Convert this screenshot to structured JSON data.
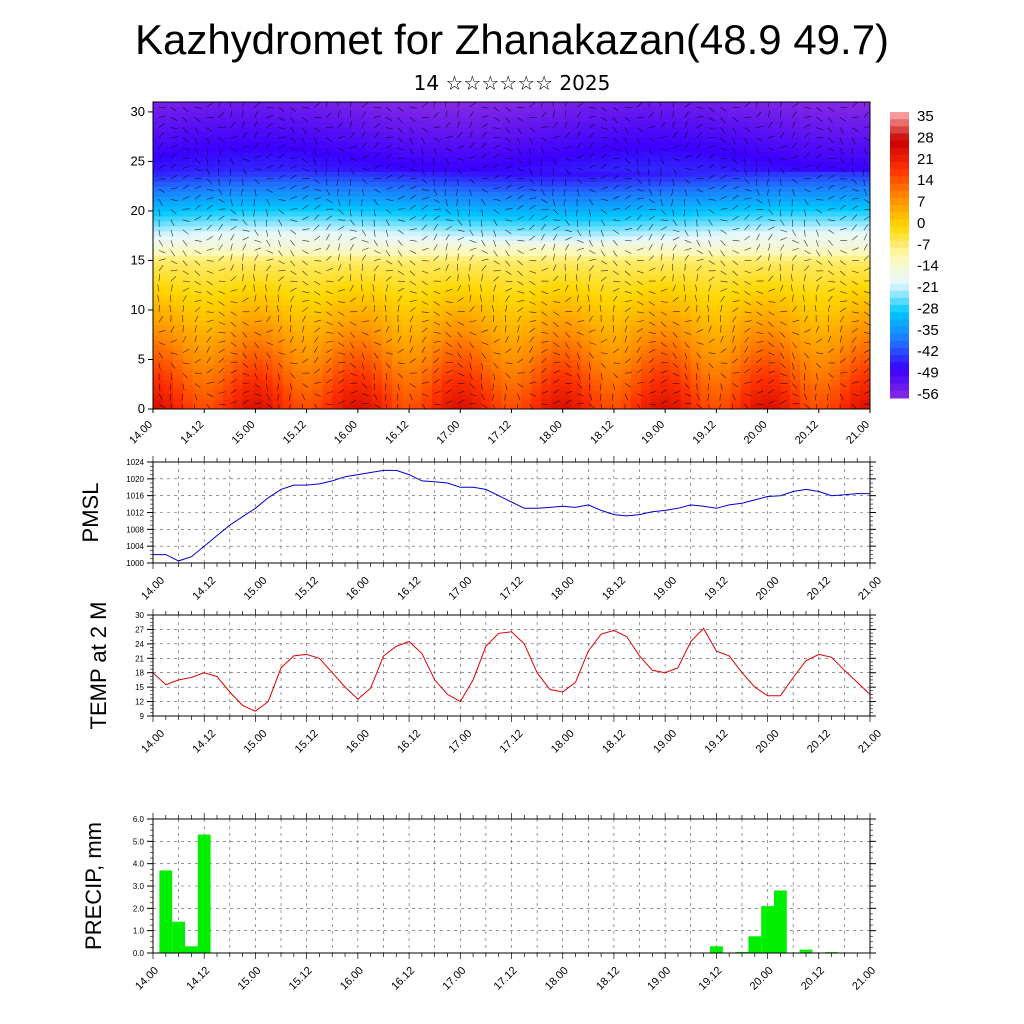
{
  "header": {
    "title": "Kazhydromet for Zhanakazan(48.9 49.7)",
    "subtitle": "14 ☆☆☆☆☆☆ 2025"
  },
  "time_ticks": [
    "14.00",
    "14.12",
    "15.00",
    "15.12",
    "16.00",
    "16.12",
    "17.00",
    "17.12",
    "18.00",
    "18.12",
    "19.00",
    "19.12",
    "20.00",
    "20.12",
    "21.00"
  ],
  "colors": {
    "pmsl_line": "#0000cc",
    "temp_line": "#dd0000",
    "precip_bar": "#00ee00",
    "colormap": [
      "#8a2be2",
      "#3a00ff",
      "#1e78ff",
      "#00c8ff",
      "#e6f8ff",
      "#fff8b0",
      "#ffd700",
      "#ff8c00",
      "#ff3000",
      "#c80000",
      "#ffb0b0"
    ]
  },
  "chart_data": [
    {
      "type": "heatmap",
      "title": "Kazhydromet for Zhanakazan(48.9 49.7)",
      "subtitle": "14 ☆☆☆☆☆☆ 2025",
      "ylim": [
        0,
        31
      ],
      "yticks": [
        0,
        5,
        10,
        15,
        20,
        25,
        30
      ],
      "xticks": [
        "14.00",
        "14.12",
        "15.00",
        "15.12",
        "16.00",
        "16.12",
        "17.00",
        "17.12",
        "18.00",
        "18.12",
        "19.00",
        "19.12",
        "20.00",
        "20.12",
        "21.00"
      ],
      "colorbar_labels": [
        "35",
        "28",
        "21",
        "14",
        "7",
        "0",
        "-7",
        "-14",
        "-21",
        "-28",
        "-35",
        "-42",
        "-49",
        "-56"
      ],
      "overlay": "wind barbs",
      "note_values_celsius_range": [
        -60,
        35
      ]
    },
    {
      "type": "line",
      "ylabel": "PMSL",
      "ylim": [
        1000,
        1024
      ],
      "yticks": [
        1000,
        1004,
        1008,
        1012,
        1016,
        1020,
        1024
      ],
      "x": [
        0,
        3,
        6,
        9,
        12,
        15,
        18,
        21,
        24,
        27,
        30,
        33,
        36,
        39,
        42,
        45,
        48,
        51,
        54,
        57,
        60,
        63,
        66,
        69,
        72,
        75,
        78,
        81,
        84,
        87,
        90,
        93,
        96,
        99,
        102,
        105,
        108,
        111,
        114,
        117,
        120,
        123,
        126,
        129,
        132,
        135,
        138,
        141,
        144,
        147,
        150,
        153,
        156,
        159,
        162,
        165,
        168
      ],
      "series": [
        {
          "values": [
            1002,
            1002,
            1000.5,
            1001.5,
            1004,
            1006.5,
            1009,
            1011,
            1013,
            1015.5,
            1017.5,
            1018.5,
            1018.5,
            1018.8,
            1019.5,
            1020.5,
            1021,
            1021.5,
            1022,
            1022,
            1021,
            1019.5,
            1019.3,
            1019,
            1018,
            1018,
            1017.5,
            1016,
            1014.5,
            1013,
            1013,
            1013.2,
            1013.5,
            1013.2,
            1013.8,
            1012.5,
            1011.5,
            1011.2,
            1011.5,
            1012.2,
            1012.5,
            1013,
            1013.8,
            1013.5,
            1013,
            1013.8,
            1014.2,
            1015,
            1015.8,
            1016,
            1017,
            1017.5,
            1017,
            1016,
            1016.2,
            1016.5,
            1016.5
          ]
        }
      ],
      "xticks": [
        "14.00",
        "14.12",
        "15.00",
        "15.12",
        "16.00",
        "16.12",
        "17.00",
        "17.12",
        "18.00",
        "18.12",
        "19.00",
        "19.12",
        "20.00",
        "20.12",
        "21.00"
      ]
    },
    {
      "type": "line",
      "ylabel": "TEMP at 2 M",
      "ylim": [
        9,
        30
      ],
      "yticks": [
        9,
        12,
        15,
        18,
        21,
        24,
        27,
        30
      ],
      "x": [
        0,
        3,
        6,
        9,
        12,
        15,
        18,
        21,
        24,
        27,
        30,
        33,
        36,
        39,
        42,
        45,
        48,
        51,
        54,
        57,
        60,
        63,
        66,
        69,
        72,
        75,
        78,
        81,
        84,
        87,
        90,
        93,
        96,
        99,
        102,
        105,
        108,
        111,
        114,
        117,
        120,
        123,
        126,
        129,
        132,
        135,
        138,
        141,
        144,
        147,
        150,
        153,
        156,
        159,
        162,
        165,
        168
      ],
      "series": [
        {
          "values": [
            18,
            15.5,
            16.5,
            17,
            18,
            17.2,
            14,
            11.2,
            10,
            12,
            19,
            21.5,
            21.8,
            21,
            18,
            15,
            12.5,
            14.8,
            21.5,
            23.5,
            24.5,
            22,
            16.5,
            13.5,
            12,
            16.5,
            23.5,
            26.2,
            26.5,
            24,
            18,
            14.5,
            14,
            16,
            22.5,
            26,
            26.8,
            25.5,
            21.5,
            18.5,
            18,
            19,
            24.5,
            27.2,
            22.5,
            21.5,
            18,
            15,
            13.2,
            13.2,
            17,
            20.5,
            21.8,
            21.2,
            18.5,
            16,
            13.5
          ]
        }
      ],
      "xticks": [
        "14.00",
        "14.12",
        "15.00",
        "15.12",
        "16.00",
        "16.12",
        "17.00",
        "17.12",
        "18.00",
        "18.12",
        "19.00",
        "19.12",
        "20.00",
        "20.12",
        "21.00"
      ]
    },
    {
      "type": "bar",
      "ylabel": "PRECIP, mm",
      "ylim": [
        0,
        6
      ],
      "yticks": [
        "0.0",
        "1.0",
        "2.0",
        "3.0",
        "4.0",
        "5.0",
        "6.0"
      ],
      "x": [
        0,
        3,
        6,
        9,
        129,
        135,
        138,
        141,
        144,
        150,
        156
      ],
      "values": [
        3.7,
        1.4,
        0.3,
        5.3,
        0.3,
        0.05,
        0.75,
        2.1,
        2.8,
        0.15,
        0.04
      ],
      "x_start_offset_hours": 3,
      "xticks": [
        "14.00",
        "14.12",
        "15.00",
        "15.12",
        "16.00",
        "16.12",
        "17.00",
        "17.12",
        "18.00",
        "18.12",
        "19.00",
        "19.12",
        "20.00",
        "20.12",
        "21.00"
      ]
    }
  ]
}
